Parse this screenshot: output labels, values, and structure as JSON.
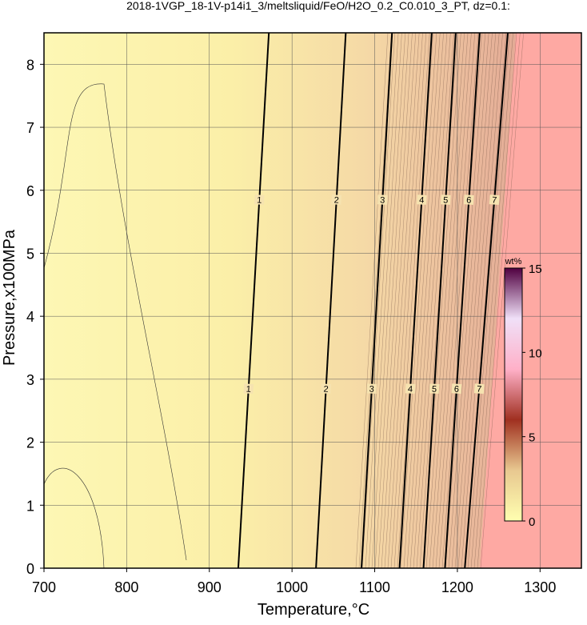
{
  "chart_data": {
    "type": "contour",
    "title": "2018-1VGP_18-1V-p14i1_3/meltsliquid/FeO/H2O_0.2_C0.010_3_PT, dz=0.1:",
    "x_label": "Temperature,°C",
    "y_label": "Pressure,x100MPa",
    "xlim": [
      700,
      1350
    ],
    "ylim": [
      0,
      8.5
    ],
    "xticks": [
      700,
      800,
      900,
      1000,
      1100,
      1200,
      1300
    ],
    "yticks": [
      0,
      1,
      2,
      3,
      4,
      5,
      6,
      7,
      8
    ],
    "grid": true,
    "contours": [
      {
        "level": 1,
        "x": [
          935,
          972
        ],
        "y": [
          0,
          8.5
        ]
      },
      {
        "level": 2,
        "x": [
          1029,
          1065
        ],
        "y": [
          0,
          8.5
        ]
      },
      {
        "level": 3,
        "x": [
          1084,
          1121
        ],
        "y": [
          0,
          8.5
        ]
      },
      {
        "level": 4,
        "x": [
          1130,
          1169
        ],
        "y": [
          0,
          8.5
        ]
      },
      {
        "level": 5,
        "x": [
          1159,
          1198
        ],
        "y": [
          0,
          8.5
        ]
      },
      {
        "level": 6,
        "x": [
          1185,
          1227
        ],
        "y": [
          0,
          8.5
        ]
      },
      {
        "level": 7,
        "x": [
          1209,
          1261
        ],
        "y": [
          0,
          8.5
        ]
      }
    ],
    "label_pressures": [
      2.85,
      5.85
    ],
    "colorbar": {
      "label": "wt%",
      "lim": [
        0,
        15
      ],
      "ticks": [
        0,
        5,
        10,
        15
      ]
    }
  }
}
